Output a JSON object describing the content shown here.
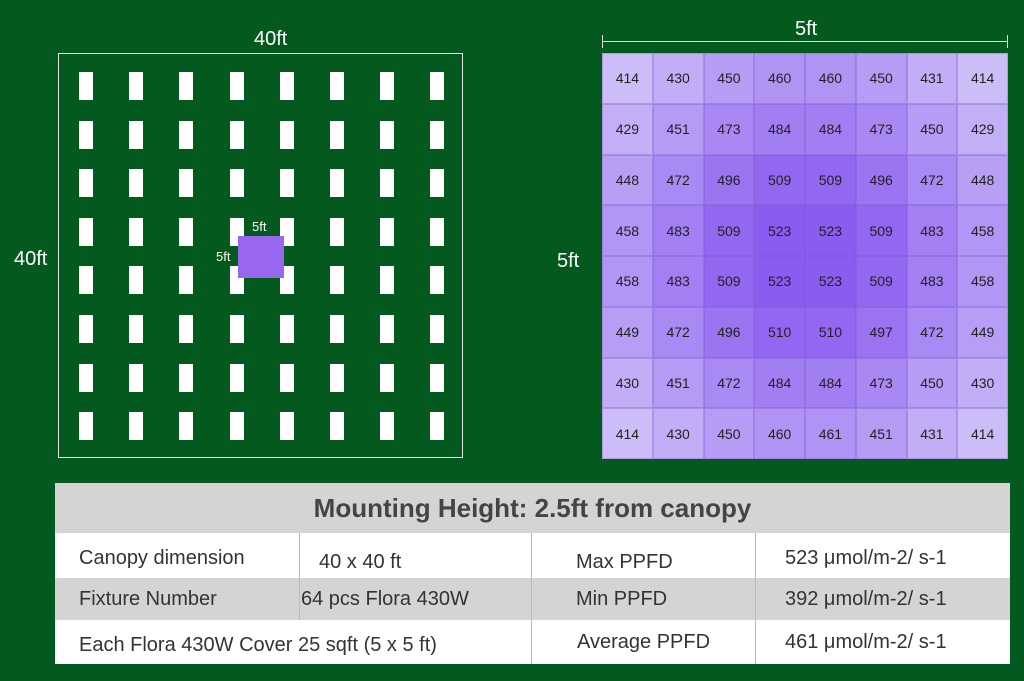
{
  "layout": {
    "width_label": "40ft",
    "height_label": "40ft",
    "zone_width_label": "5ft",
    "zone_height_label": "5ft",
    "fixture_rows": 8,
    "fixture_cols": 8
  },
  "ppfd_grid": {
    "width_label": "5ft",
    "height_label": "5ft",
    "values": [
      [
        414,
        430,
        450,
        460,
        460,
        450,
        431,
        414
      ],
      [
        429,
        451,
        473,
        484,
        484,
        473,
        450,
        429
      ],
      [
        448,
        472,
        496,
        509,
        509,
        496,
        472,
        448
      ],
      [
        458,
        483,
        509,
        523,
        523,
        509,
        483,
        458
      ],
      [
        458,
        483,
        509,
        523,
        523,
        509,
        483,
        458
      ],
      [
        449,
        472,
        496,
        510,
        510,
        497,
        472,
        449
      ],
      [
        430,
        451,
        472,
        484,
        484,
        473,
        450,
        430
      ],
      [
        414,
        430,
        450,
        460,
        461,
        451,
        431,
        414
      ]
    ]
  },
  "spec": {
    "title": "Mounting Height: 2.5ft from canopy",
    "rows": [
      {
        "label": "Canopy dimension",
        "value": "40 x 40 ft",
        "metric": "Max PPFD",
        "metric_value": "523 μmol/m-2/ s-1"
      },
      {
        "label": "Fixture Number",
        "value": "64 pcs Flora 430W",
        "metric": "Min PPFD",
        "metric_value": "392 μmol/m-2/ s-1"
      },
      {
        "label": "Each Flora 430W Cover 25 sqft (5 x 5 ft)",
        "value": "",
        "metric": "Average PPFD",
        "metric_value": "461 μmol/m-2/ s-1"
      }
    ]
  },
  "colors": {
    "background": "#04591f",
    "fixture": "#ffffff",
    "zone": "#9966ee",
    "grid_low": "#ccbcf7",
    "grid_high": "#8b5cf0"
  }
}
